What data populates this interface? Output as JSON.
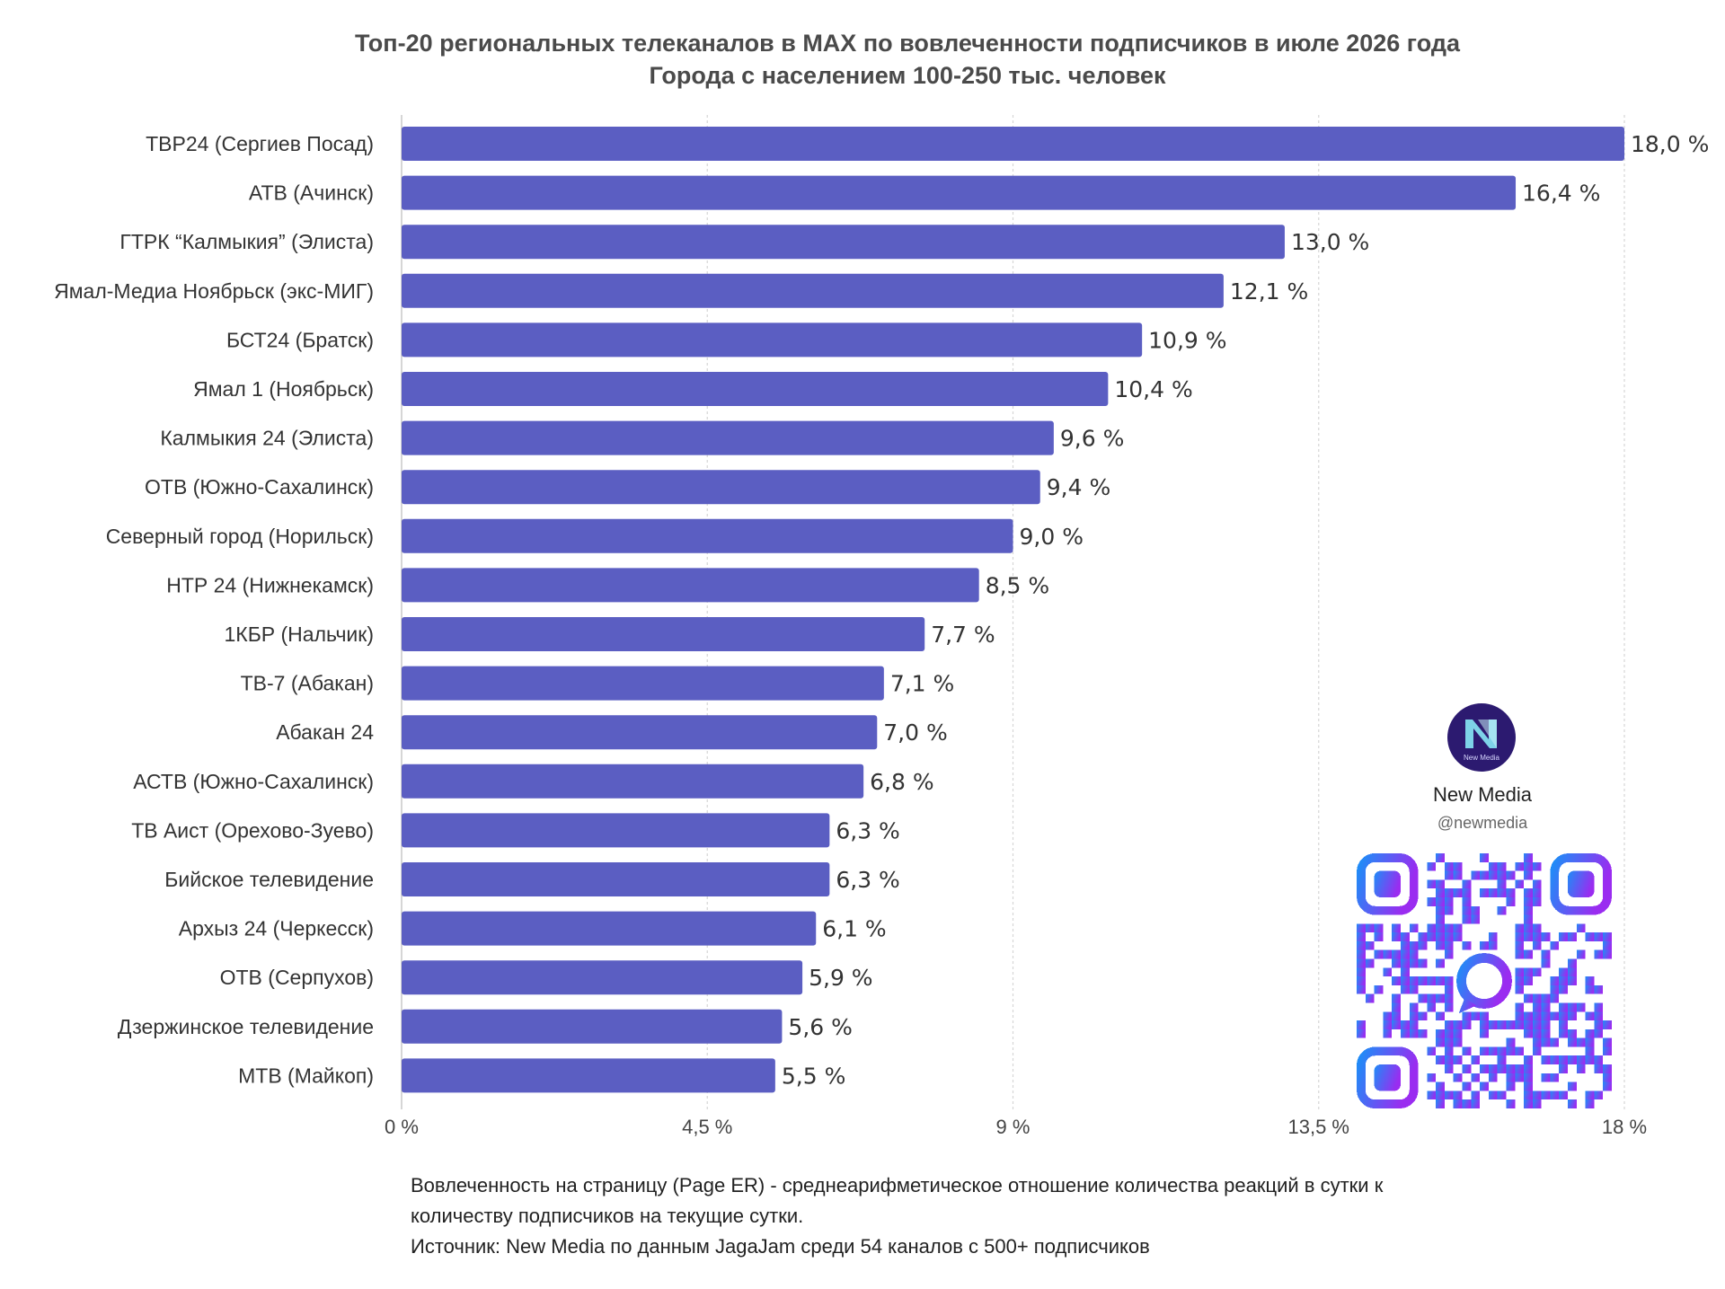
{
  "title": {
    "line1": "Топ-20 региональных телеканалов в MAX по вовлеченности подписчиков в июле 2026 года",
    "line2": "Города с населением 100-250 тыс. человек"
  },
  "colors": {
    "bar": "#5b5ec2",
    "grid": "#d6d6d6",
    "brand_bg": "#2c1a70",
    "qr_start": "#1f8cf7",
    "qr_end": "#9a2cf0"
  },
  "chart_data": {
    "type": "bar",
    "orientation": "horizontal",
    "categories": [
      "ТВР24 (Сергиев Посад)",
      "АТВ (Ачинск)",
      "ГТРК “Калмыкия” (Элиста)",
      "Ямал-Медиа Ноябрьск (экс-МИГ)",
      "БСТ24 (Братск)",
      "Ямал 1 (Ноябрьск)",
      "Калмыкия 24 (Элиста)",
      "ОТВ (Южно-Сахалинск)",
      "Северный город (Норильск)",
      "НТР 24 (Нижнекамск)",
      "1КБР (Нальчик)",
      "ТВ-7 (Абакан)",
      "Абакан 24",
      "АСТВ (Южно-Сахалинск)",
      "ТВ Аист (Орехово-Зуево)",
      "Бийское телевидение",
      "Архыз 24 (Черкесск)",
      "ОТВ (Серпухов)",
      "Дзержинское телевидение",
      "МТВ (Майкоп)"
    ],
    "values": [
      18.0,
      16.4,
      13.0,
      12.1,
      10.9,
      10.4,
      9.6,
      9.4,
      9.0,
      8.5,
      7.7,
      7.1,
      7.0,
      6.8,
      6.3,
      6.3,
      6.1,
      5.9,
      5.6,
      5.5
    ],
    "value_labels": [
      "18,0 %",
      "16,4 %",
      "13,0 %",
      "12,1 %",
      "10,9 %",
      "10,4 %",
      "9,6 %",
      "9,4 %",
      "9,0 %",
      "8,5 %",
      "7,7 %",
      "7,1 %",
      "7,0 %",
      "6,8 %",
      "6,3 %",
      "6,3 %",
      "6,1 %",
      "5,9 %",
      "5,6 %",
      "5,5 %"
    ],
    "xlim": [
      0,
      18
    ],
    "xticks": [
      0,
      4.5,
      9,
      13.5,
      18
    ],
    "xtick_labels": [
      "0 %",
      "4,5 %",
      "9 %",
      "13,5 %",
      "18 %"
    ],
    "grid": "vertical"
  },
  "footnote": {
    "line1": "Вовлеченность на страницу (Page ER) - среднеарифметическое отношение количества реакций в сутки к",
    "line2": "количеству подписчиков на текущие сутки.",
    "line3": "Источник: New Media по данным JagaJam среди 54 каналов с 500+ подписчиков"
  },
  "brand": {
    "name": "New Media",
    "handle": "@newmedia",
    "logo_text": "New Media",
    "logo_icon": "n-letter-logo-icon",
    "qr_icon": "qr-code-icon"
  }
}
